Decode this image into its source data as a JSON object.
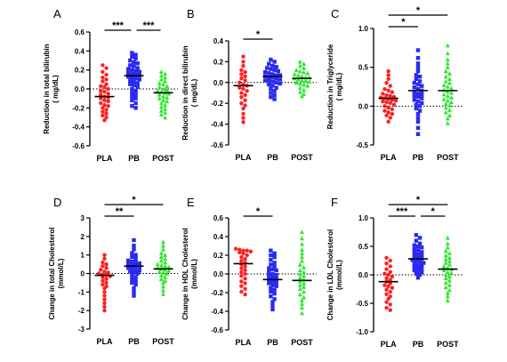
{
  "figure": {
    "group_labels": [
      "PLA",
      "PB",
      "POST"
    ],
    "colors": {
      "PLA": "#ff2020",
      "PB": "#2a2af0",
      "POST": "#2ee82e"
    }
  },
  "chart_data": [
    {
      "panel": "A",
      "type": "scatter",
      "ylabel_lines": [
        "Reduction in total bilirubin",
        "( mg/dL)"
      ],
      "ylim": [
        -0.6,
        0.6
      ],
      "yticks": [
        "-0.6",
        "-0.4",
        "-0.2",
        "0.0",
        "0.2",
        "0.4",
        "0.6"
      ],
      "ytick_values": [
        -0.6,
        -0.4,
        -0.2,
        0.0,
        0.2,
        0.4,
        0.6
      ],
      "zero_line": true,
      "categories": [
        "PLA",
        "PB",
        "POST"
      ],
      "means": [
        -0.08,
        0.14,
        -0.04
      ],
      "significance": [
        {
          "from": "PLA",
          "to": "PB",
          "label": "***",
          "level": 0
        },
        {
          "from": "PB",
          "to": "POST",
          "label": "***",
          "level": 0
        }
      ],
      "series": [
        {
          "values": [
            0.25,
            0.22,
            0.18,
            0.15,
            0.12,
            0.1,
            0.08,
            0.05,
            0.03,
            0.02,
            0.0,
            -0.02,
            -0.03,
            -0.05,
            -0.06,
            -0.08,
            -0.09,
            -0.1,
            -0.12,
            -0.13,
            -0.15,
            -0.17,
            -0.18,
            -0.2,
            -0.22,
            -0.24,
            -0.26,
            -0.28,
            -0.3,
            -0.33
          ]
        },
        {
          "values": [
            0.38,
            0.36,
            0.34,
            0.32,
            0.3,
            0.28,
            0.27,
            0.25,
            0.24,
            0.22,
            0.21,
            0.2,
            0.19,
            0.18,
            0.17,
            0.16,
            0.15,
            0.14,
            0.13,
            0.12,
            0.11,
            0.1,
            0.09,
            0.08,
            0.06,
            0.05,
            0.04,
            0.02,
            0.0,
            -0.02,
            -0.04,
            -0.06,
            -0.08,
            -0.1,
            -0.12,
            -0.15,
            -0.18,
            -0.2
          ]
        },
        {
          "values": [
            0.18,
            0.16,
            0.14,
            0.12,
            0.1,
            0.08,
            0.06,
            0.05,
            0.03,
            0.02,
            0.0,
            -0.01,
            -0.02,
            -0.03,
            -0.04,
            -0.05,
            -0.06,
            -0.08,
            -0.09,
            -0.1,
            -0.12,
            -0.13,
            -0.15,
            -0.17,
            -0.19,
            -0.21,
            -0.23,
            -0.25,
            -0.27,
            -0.3
          ]
        }
      ]
    },
    {
      "panel": "B",
      "type": "scatter",
      "ylabel_lines": [
        "Reduction in direct bilirubin",
        "( mg/dL)"
      ],
      "ylim": [
        -0.6,
        0.4
      ],
      "yticks": [
        "-0.6",
        "-0.4",
        "-0.2",
        "0.0",
        "0.2",
        "0.4"
      ],
      "ytick_values": [
        -0.6,
        -0.4,
        -0.2,
        0.0,
        0.2,
        0.4
      ],
      "zero_line": true,
      "categories": [
        "PLA",
        "PB",
        "POST"
      ],
      "means": [
        -0.03,
        0.06,
        0.04
      ],
      "significance": [
        {
          "from": "PLA",
          "to": "PB",
          "label": "*",
          "level": 0
        }
      ],
      "series": [
        {
          "values": [
            0.25,
            0.2,
            0.16,
            0.12,
            0.1,
            0.08,
            0.06,
            0.04,
            0.02,
            0.0,
            -0.02,
            -0.03,
            -0.05,
            -0.06,
            -0.08,
            -0.1,
            -0.12,
            -0.14,
            -0.17,
            -0.2,
            -0.22,
            -0.25,
            -0.3,
            -0.34,
            -0.38
          ]
        },
        {
          "values": [
            0.22,
            0.2,
            0.18,
            0.16,
            0.15,
            0.14,
            0.13,
            0.12,
            0.11,
            0.1,
            0.09,
            0.08,
            0.07,
            0.07,
            0.06,
            0.05,
            0.05,
            0.04,
            0.03,
            0.02,
            0.02,
            0.01,
            0.0,
            -0.01,
            -0.02,
            -0.03,
            -0.05,
            -0.06,
            -0.08,
            -0.1,
            -0.12,
            -0.14,
            -0.16
          ]
        },
        {
          "values": [
            0.2,
            0.18,
            0.16,
            0.14,
            0.12,
            0.11,
            0.1,
            0.09,
            0.08,
            0.07,
            0.06,
            0.05,
            0.05,
            0.04,
            0.03,
            0.02,
            0.02,
            0.01,
            0.0,
            -0.01,
            -0.02,
            -0.03,
            -0.05,
            -0.07,
            -0.09,
            -0.11,
            -0.13
          ]
        }
      ]
    },
    {
      "panel": "C",
      "type": "scatter",
      "ylabel_lines": [
        "Reduction in Triglyceride",
        "( mg/dL)"
      ],
      "ylim": [
        -0.5,
        1.0
      ],
      "yticks": [
        "-0.5",
        "0.0",
        "0.5",
        "1.0"
      ],
      "ytick_values": [
        -0.5,
        0.0,
        0.5,
        1.0
      ],
      "zero_line": true,
      "categories": [
        "PLA",
        "PB",
        "POST"
      ],
      "means": [
        0.1,
        0.2,
        0.2
      ],
      "significance": [
        {
          "from": "PLA",
          "to": "PB",
          "label": "*",
          "level": 0
        },
        {
          "from": "PLA",
          "to": "POST",
          "label": "*",
          "level": 1
        }
      ],
      "series": [
        {
          "values": [
            0.45,
            0.4,
            0.35,
            0.3,
            0.26,
            0.22,
            0.2,
            0.18,
            0.16,
            0.14,
            0.13,
            0.12,
            0.11,
            0.1,
            0.09,
            0.08,
            0.07,
            0.06,
            0.05,
            0.04,
            0.02,
            0.0,
            -0.02,
            -0.04,
            -0.06,
            -0.08,
            -0.1,
            -0.12,
            -0.15,
            -0.2
          ]
        },
        {
          "values": [
            0.72,
            0.62,
            0.55,
            0.5,
            0.45,
            0.4,
            0.38,
            0.35,
            0.32,
            0.3,
            0.28,
            0.26,
            0.24,
            0.22,
            0.2,
            0.18,
            0.16,
            0.15,
            0.13,
            0.12,
            0.1,
            0.08,
            0.06,
            0.04,
            0.02,
            0.0,
            -0.03,
            -0.06,
            -0.1,
            -0.15,
            -0.2,
            -0.28,
            -0.36
          ]
        },
        {
          "values": [
            0.78,
            0.68,
            0.6,
            0.55,
            0.5,
            0.45,
            0.42,
            0.38,
            0.35,
            0.32,
            0.3,
            0.27,
            0.25,
            0.23,
            0.21,
            0.19,
            0.17,
            0.15,
            0.13,
            0.11,
            0.09,
            0.07,
            0.05,
            0.03,
            0.01,
            -0.02,
            -0.05,
            -0.08,
            -0.12,
            -0.16,
            -0.22
          ]
        }
      ]
    },
    {
      "panel": "D",
      "type": "scatter",
      "ylabel_lines": [
        "Change in total Cholesterol",
        "(mmol/L)"
      ],
      "ylim": [
        -3,
        3
      ],
      "yticks": [
        "-3",
        "-2",
        "-1",
        "0",
        "1",
        "2",
        "3"
      ],
      "ytick_values": [
        -3,
        -2,
        -1,
        0,
        1,
        2,
        3
      ],
      "zero_line": true,
      "categories": [
        "PLA",
        "PB",
        "POST"
      ],
      "means": [
        -0.1,
        0.4,
        0.25
      ],
      "significance": [
        {
          "from": "PLA",
          "to": "PB",
          "label": "**",
          "level": 0
        },
        {
          "from": "PLA",
          "to": "POST",
          "label": "*",
          "level": 1
        }
      ],
      "series": [
        {
          "values": [
            1.0,
            0.8,
            0.6,
            0.5,
            0.4,
            0.3,
            0.2,
            0.1,
            0.05,
            0.0,
            -0.05,
            -0.1,
            -0.15,
            -0.2,
            -0.3,
            -0.4,
            -0.5,
            -0.6,
            -0.7,
            -0.8,
            -1.0,
            -1.2,
            -1.4,
            -1.6,
            -1.8,
            -2.0
          ]
        },
        {
          "values": [
            1.8,
            1.5,
            1.3,
            1.1,
            1.0,
            0.9,
            0.8,
            0.7,
            0.65,
            0.6,
            0.55,
            0.5,
            0.45,
            0.4,
            0.35,
            0.3,
            0.25,
            0.2,
            0.15,
            0.1,
            0.05,
            0.0,
            -0.1,
            -0.2,
            -0.3,
            -0.4,
            -0.5,
            -0.6,
            -0.8,
            -1.0,
            -1.2
          ]
        },
        {
          "values": [
            1.7,
            1.5,
            1.3,
            1.1,
            1.0,
            0.9,
            0.8,
            0.7,
            0.6,
            0.5,
            0.45,
            0.4,
            0.35,
            0.3,
            0.25,
            0.2,
            0.15,
            0.1,
            0.05,
            0.0,
            -0.1,
            -0.2,
            -0.3,
            -0.4,
            -0.5,
            -0.7,
            -0.9,
            -1.1
          ]
        }
      ]
    },
    {
      "panel": "E",
      "type": "scatter",
      "ylabel_lines": [
        "Change in HDL Cholesterol",
        "(mmol/L)"
      ],
      "ylim": [
        -0.6,
        0.6
      ],
      "yticks": [
        "-0.6",
        "-0.4",
        "-0.2",
        "0.0",
        "0.2",
        "0.4",
        "0.6"
      ],
      "ytick_values": [
        -0.6,
        -0.4,
        -0.2,
        0.0,
        0.2,
        0.4,
        0.6
      ],
      "zero_line": true,
      "categories": [
        "PLA",
        "PB",
        "POST"
      ],
      "means": [
        0.11,
        -0.06,
        -0.07
      ],
      "significance": [
        {
          "from": "PLA",
          "to": "PB",
          "label": "*",
          "level": 0
        }
      ],
      "series": [
        {
          "values": [
            0.27,
            0.26,
            0.25,
            0.25,
            0.24,
            0.23,
            0.22,
            0.2,
            0.18,
            0.16,
            0.14,
            0.12,
            0.1,
            0.08,
            0.06,
            0.04,
            0.02,
            0.0,
            -0.02,
            -0.05,
            -0.08,
            -0.1,
            -0.13,
            -0.16,
            -0.19,
            -0.22
          ]
        },
        {
          "values": [
            0.25,
            0.22,
            0.2,
            0.18,
            0.15,
            0.12,
            0.1,
            0.08,
            0.06,
            0.05,
            0.04,
            0.02,
            0.0,
            -0.01,
            -0.02,
            -0.04,
            -0.05,
            -0.06,
            -0.08,
            -0.09,
            -0.1,
            -0.12,
            -0.13,
            -0.15,
            -0.17,
            -0.19,
            -0.21,
            -0.24,
            -0.27,
            -0.3,
            -0.34,
            -0.38
          ]
        },
        {
          "values": [
            0.45,
            0.38,
            0.32,
            0.26,
            0.22,
            0.18,
            0.14,
            0.1,
            0.07,
            0.04,
            0.02,
            0.0,
            -0.02,
            -0.04,
            -0.06,
            -0.08,
            -0.1,
            -0.12,
            -0.14,
            -0.16,
            -0.19,
            -0.22,
            -0.25,
            -0.28,
            -0.32,
            -0.36,
            -0.42
          ]
        }
      ]
    },
    {
      "panel": "F",
      "type": "scatter",
      "ylabel_lines": [
        "Change in LDL Cholesterol",
        "(mmol/L)"
      ],
      "ylim": [
        -1.0,
        1.0
      ],
      "yticks": [
        "-1.0",
        "-0.5",
        "0.0",
        "0.5",
        "1.0"
      ],
      "ytick_values": [
        -1.0,
        -0.5,
        0.0,
        0.5,
        1.0
      ],
      "zero_line": true,
      "categories": [
        "PLA",
        "PB",
        "POST"
      ],
      "means": [
        -0.12,
        0.28,
        0.1
      ],
      "significance": [
        {
          "from": "PLA",
          "to": "PB",
          "label": "***",
          "level": 0
        },
        {
          "from": "PB",
          "to": "POST",
          "label": "*",
          "level": 0
        },
        {
          "from": "PLA",
          "to": "POST",
          "label": "*",
          "level": 1
        }
      ],
      "series": [
        {
          "values": [
            0.3,
            0.25,
            0.2,
            0.15,
            0.1,
            0.05,
            0.02,
            0.0,
            -0.03,
            -0.06,
            -0.09,
            -0.12,
            -0.15,
            -0.18,
            -0.2,
            -0.23,
            -0.26,
            -0.3,
            -0.34,
            -0.38,
            -0.42,
            -0.48,
            -0.52,
            -0.58,
            -0.62
          ]
        },
        {
          "values": [
            0.7,
            0.65,
            0.6,
            0.55,
            0.52,
            0.5,
            0.48,
            0.45,
            0.43,
            0.4,
            0.38,
            0.36,
            0.34,
            0.32,
            0.3,
            0.28,
            0.26,
            0.25,
            0.23,
            0.21,
            0.2,
            0.18,
            0.16,
            0.14,
            0.12,
            0.1,
            0.08,
            0.06,
            0.04,
            0.02,
            0.0,
            -0.05
          ]
        },
        {
          "values": [
            0.65,
            0.55,
            0.48,
            0.42,
            0.38,
            0.34,
            0.3,
            0.27,
            0.24,
            0.21,
            0.18,
            0.15,
            0.12,
            0.1,
            0.08,
            0.05,
            0.03,
            0.0,
            -0.03,
            -0.06,
            -0.1,
            -0.14,
            -0.18,
            -0.22,
            -0.27,
            -0.32,
            -0.38,
            -0.45
          ]
        }
      ]
    }
  ]
}
